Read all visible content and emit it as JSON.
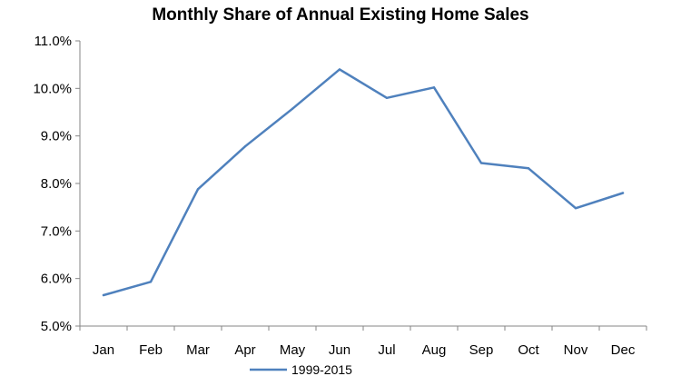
{
  "chart_data": {
    "type": "line",
    "title": "Monthly Share of Annual Existing Home Sales",
    "xlabel": "",
    "ylabel": "",
    "categories": [
      "Jan",
      "Feb",
      "Mar",
      "Apr",
      "May",
      "Jun",
      "Jul",
      "Aug",
      "Sep",
      "Oct",
      "Nov",
      "Dec"
    ],
    "ylim": [
      5.0,
      11.0
    ],
    "yticks": [
      "5.0%",
      "6.0%",
      "7.0%",
      "8.0%",
      "9.0%",
      "10.0%",
      "11.0%"
    ],
    "grid": false,
    "legend_position": "bottom",
    "series": [
      {
        "name": "1999-2015",
        "color": "#4f81bd",
        "values": [
          5.65,
          5.93,
          7.88,
          8.78,
          9.57,
          10.4,
          9.8,
          10.02,
          8.43,
          8.32,
          7.48,
          7.8
        ]
      }
    ]
  }
}
